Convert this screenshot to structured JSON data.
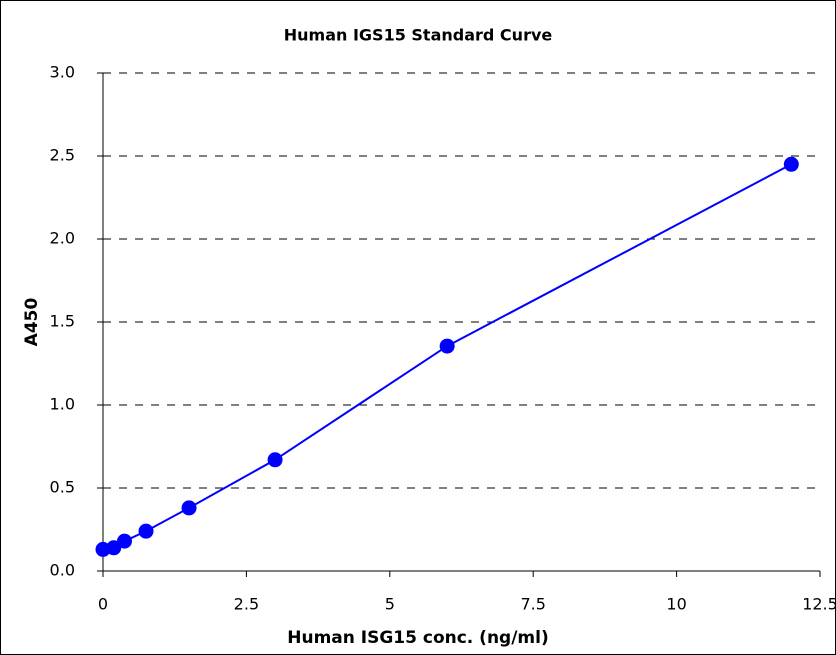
{
  "chart_data": {
    "type": "scatter",
    "title": "Human IGS15 Standard Curve",
    "x_label": "Human ISG15 conc. (ng/ml)",
    "y_label": "A450",
    "series": [
      {
        "color": "#0000ff",
        "x": [
          0,
          0.1875,
          0.375,
          0.75,
          1.5,
          3,
          6,
          12
        ],
        "values": [
          0.13,
          0.14,
          0.18,
          0.24,
          0.38,
          0.67,
          1.355,
          2.45
        ]
      }
    ],
    "xlim": [
      0,
      12.5
    ],
    "ylim": [
      0,
      3.0
    ],
    "xticks": [
      0,
      2.5,
      5,
      7.5,
      10,
      12.5
    ],
    "yticks": [
      {
        "value": 0,
        "label": "0.0"
      },
      {
        "value": 0.5,
        "label": "0.5"
      },
      {
        "value": 1,
        "label": "1.0"
      },
      {
        "value": 1.5,
        "label": "1.5"
      },
      {
        "value": 2,
        "label": "2.0"
      },
      {
        "value": 2.5,
        "label": "2.5"
      },
      {
        "value": 3,
        "label": "3.0"
      }
    ],
    "grid": true
  }
}
